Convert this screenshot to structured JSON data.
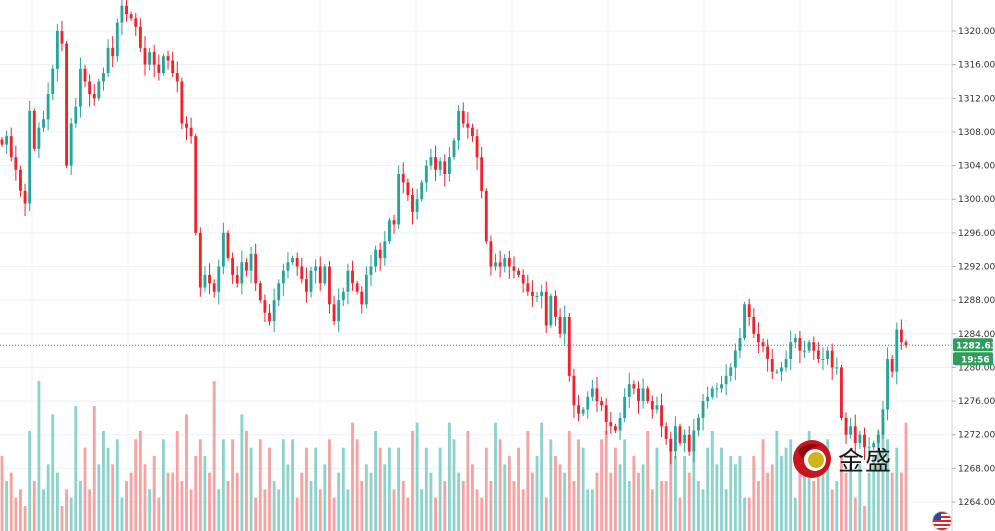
{
  "chart_data": {
    "type": "candlestick",
    "ylim": [
      1262.0,
      1323.5
    ],
    "y_ticks": [
      "1320.00",
      "1316.00",
      "1312.00",
      "1308.00",
      "1304.00",
      "1300.00",
      "1296.00",
      "1292.00",
      "1288.00",
      "1284.00",
      "1280.00",
      "1276.00",
      "1272.00",
      "1268.00",
      "1264.00"
    ],
    "last_price": "1282.63",
    "last_price_value": 1282.63,
    "countdown": "19:56",
    "up_color": "#26a69a",
    "down_color": "#ef232a",
    "vol_up_color": "#8dd3cc",
    "vol_down_color": "#f5a3a3",
    "closes": [
      1306.5,
      1307.5,
      1305.0,
      1303.5,
      1301.0,
      1299.5,
      1310.5,
      1306.0,
      1308.5,
      1309.5,
      1312.5,
      1315.5,
      1320.0,
      1318.5,
      1304.0,
      1309.0,
      1311.0,
      1315.5,
      1314.0,
      1312.5,
      1312.0,
      1314.0,
      1315.0,
      1318.0,
      1317.0,
      1321.0,
      1323.0,
      1322.0,
      1321.5,
      1320.5,
      1318.0,
      1316.0,
      1317.5,
      1316.0,
      1315.0,
      1317.0,
      1316.5,
      1315.0,
      1314.0,
      1309.0,
      1308.5,
      1307.5,
      1296.0,
      1289.5,
      1291.0,
      1290.0,
      1289.0,
      1292.0,
      1296.0,
      1293.0,
      1291.0,
      1290.0,
      1292.5,
      1291.5,
      1293.5,
      1290.0,
      1288.0,
      1286.5,
      1285.5,
      1288.0,
      1290.0,
      1291.5,
      1292.5,
      1293.0,
      1292.0,
      1290.5,
      1289.0,
      1291.5,
      1292.0,
      1290.0,
      1292.0,
      1287.5,
      1285.5,
      1288.0,
      1289.0,
      1291.5,
      1290.0,
      1289.0,
      1287.5,
      1291.0,
      1292.0,
      1294.0,
      1293.0,
      1295.0,
      1297.5,
      1297.0,
      1303.0,
      1302.0,
      1300.5,
      1298.5,
      1300.0,
      1302.0,
      1304.0,
      1305.0,
      1303.5,
      1304.5,
      1303.0,
      1305.0,
      1307.0,
      1310.5,
      1309.0,
      1308.5,
      1307.5,
      1305.0,
      1301.0,
      1295.0,
      1292.0,
      1292.5,
      1292.0,
      1293.0,
      1292.0,
      1291.5,
      1291.0,
      1290.0,
      1289.0,
      1288.5,
      1288.5,
      1289.0,
      1285.0,
      1288.5,
      1286.0,
      1284.0,
      1286.0,
      1279.0,
      1275.5,
      1274.5,
      1275.0,
      1276.5,
      1277.5,
      1276.0,
      1275.5,
      1273.5,
      1273.0,
      1272.5,
      1274.0,
      1276.5,
      1278.0,
      1277.5,
      1276.0,
      1277.5,
      1276.0,
      1275.0,
      1275.5,
      1273.0,
      1271.5,
      1270.0,
      1273.0,
      1271.0,
      1272.0,
      1270.0,
      1272.5,
      1274.0,
      1276.0,
      1276.5,
      1277.5,
      1277.5,
      1278.0,
      1279.0,
      1280.0,
      1282.0,
      1283.5,
      1287.5,
      1286.0,
      1284.0,
      1283.0,
      1282.5,
      1281.0,
      1279.5,
      1279.5,
      1280.0,
      1281.0,
      1283.0,
      1283.5,
      1282.0,
      1282.0,
      1283.0,
      1282.0,
      1281.0,
      1281.0,
      1282.0,
      1280.0,
      1280.0,
      1274.0,
      1272.0,
      1273.0,
      1271.0,
      1272.0,
      1270.5,
      1270.5,
      1271.0,
      1272.0,
      1275.0,
      1281.0,
      1279.5,
      1284.5,
      1283.0,
      1282.63
    ],
    "volumes": [
      9,
      6,
      7,
      4,
      5,
      3,
      12,
      6,
      18,
      5,
      8,
      14,
      7,
      3,
      5,
      4,
      15,
      6,
      10,
      5,
      15,
      8,
      12,
      10,
      8,
      11,
      4,
      6,
      7,
      11,
      12,
      8,
      5,
      9,
      4,
      11,
      7,
      7,
      12,
      6,
      14,
      5,
      9,
      11,
      9,
      7,
      18,
      5,
      11,
      6,
      11,
      7,
      14,
      12,
      10,
      4,
      11,
      5,
      10,
      6,
      5,
      11,
      8,
      11,
      4,
      7,
      10,
      6,
      10,
      5,
      8,
      11,
      4,
      7,
      10,
      5,
      13,
      11,
      6,
      8,
      7,
      12,
      10,
      8,
      10,
      5,
      10,
      6,
      4,
      12,
      13,
      5,
      10,
      7,
      4,
      10,
      6,
      13,
      11,
      7,
      6,
      12,
      8,
      5,
      4,
      10,
      6,
      13,
      11,
      8,
      9,
      6,
      10,
      5,
      12,
      7,
      9,
      13,
      4,
      11,
      9,
      8,
      7,
      12,
      6,
      11,
      10,
      5,
      5,
      7,
      11,
      12,
      7,
      10,
      8,
      11,
      6,
      9,
      7,
      8,
      12,
      5,
      10,
      6,
      6,
      11,
      9,
      4,
      9,
      7,
      11,
      6,
      5,
      10,
      12,
      8,
      10,
      5,
      9,
      8,
      9,
      4,
      4,
      9,
      6,
      11,
      7,
      8,
      12,
      9,
      10,
      11,
      4,
      8,
      7,
      12,
      6,
      9,
      10,
      11,
      5,
      6,
      9,
      7,
      8,
      4,
      8,
      3,
      7,
      9,
      12,
      13,
      11,
      7,
      10,
      7,
      13,
      11,
      6,
      7,
      8
    ]
  },
  "watermark": {
    "text": "金盛"
  },
  "icons": {
    "flag": "us-flag-icon",
    "logo": "jinsheng-logo-icon"
  }
}
